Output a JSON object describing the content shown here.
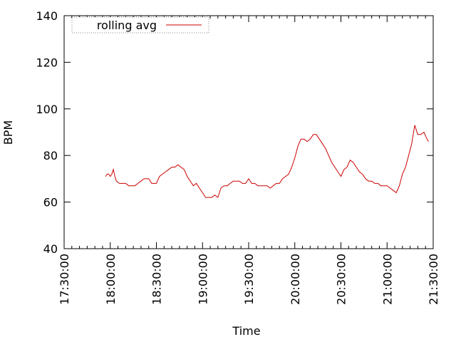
{
  "chart_data": {
    "type": "line",
    "title": "",
    "xlabel": "Time",
    "ylabel": "BPM",
    "xlim": [
      "17:30:00",
      "21:30:00"
    ],
    "ylim": [
      40,
      140
    ],
    "x_ticks": [
      "17:30:00",
      "18:00:00",
      "18:30:00",
      "19:00:00",
      "19:30:00",
      "20:00:00",
      "20:30:00",
      "21:00:00",
      "21:30:00"
    ],
    "y_ticks": [
      40,
      60,
      80,
      100,
      120,
      140
    ],
    "grid": false,
    "legend_position": "top-left",
    "series": [
      {
        "name": "rolling avg",
        "color": "#cc0000",
        "points": [
          [
            "17:57:00",
            71
          ],
          [
            "17:58:00",
            72
          ],
          [
            "17:59:00",
            72
          ],
          [
            "18:00:00",
            71
          ],
          [
            "18:01:00",
            72
          ],
          [
            "18:02:00",
            74
          ],
          [
            "18:03:00",
            71
          ],
          [
            "18:04:00",
            69
          ],
          [
            "18:06:00",
            68
          ],
          [
            "18:08:00",
            68
          ],
          [
            "18:10:00",
            68
          ],
          [
            "18:12:00",
            67
          ],
          [
            "18:14:00",
            67
          ],
          [
            "18:16:00",
            67
          ],
          [
            "18:18:00",
            68
          ],
          [
            "18:20:00",
            69
          ],
          [
            "18:22:00",
            70
          ],
          [
            "18:25:00",
            70
          ],
          [
            "18:27:00",
            68
          ],
          [
            "18:30:00",
            68
          ],
          [
            "18:32:00",
            71
          ],
          [
            "18:34:00",
            72
          ],
          [
            "18:36:00",
            73
          ],
          [
            "18:38:00",
            74
          ],
          [
            "18:40:00",
            75
          ],
          [
            "18:42:00",
            75
          ],
          [
            "18:44:00",
            76
          ],
          [
            "18:46:00",
            75
          ],
          [
            "18:48:00",
            74
          ],
          [
            "18:50:00",
            71
          ],
          [
            "18:52:00",
            69
          ],
          [
            "18:54:00",
            67
          ],
          [
            "18:56:00",
            68
          ],
          [
            "18:58:00",
            66
          ],
          [
            "19:00:00",
            64
          ],
          [
            "19:02:00",
            62
          ],
          [
            "19:04:00",
            62
          ],
          [
            "19:06:00",
            62
          ],
          [
            "19:08:00",
            63
          ],
          [
            "19:10:00",
            62
          ],
          [
            "19:12:00",
            66
          ],
          [
            "19:14:00",
            67
          ],
          [
            "19:16:00",
            67
          ],
          [
            "19:18:00",
            68
          ],
          [
            "19:20:00",
            69
          ],
          [
            "19:22:00",
            69
          ],
          [
            "19:24:00",
            69
          ],
          [
            "19:26:00",
            68
          ],
          [
            "19:28:00",
            68
          ],
          [
            "19:30:00",
            70
          ],
          [
            "19:32:00",
            68
          ],
          [
            "19:34:00",
            68
          ],
          [
            "19:36:00",
            67
          ],
          [
            "19:38:00",
            67
          ],
          [
            "19:40:00",
            67
          ],
          [
            "19:42:00",
            67
          ],
          [
            "19:44:00",
            66
          ],
          [
            "19:46:00",
            67
          ],
          [
            "19:48:00",
            68
          ],
          [
            "19:50:00",
            68
          ],
          [
            "19:52:00",
            70
          ],
          [
            "19:54:00",
            71
          ],
          [
            "19:56:00",
            72
          ],
          [
            "19:58:00",
            75
          ],
          [
            "20:00:00",
            79
          ],
          [
            "20:02:00",
            84
          ],
          [
            "20:04:00",
            87
          ],
          [
            "20:06:00",
            87
          ],
          [
            "20:08:00",
            86
          ],
          [
            "20:10:00",
            87
          ],
          [
            "20:12:00",
            89
          ],
          [
            "20:14:00",
            89
          ],
          [
            "20:16:00",
            87
          ],
          [
            "20:18:00",
            85
          ],
          [
            "20:20:00",
            83
          ],
          [
            "20:22:00",
            80
          ],
          [
            "20:24:00",
            77
          ],
          [
            "20:26:00",
            75
          ],
          [
            "20:28:00",
            73
          ],
          [
            "20:30:00",
            71
          ],
          [
            "20:32:00",
            74
          ],
          [
            "20:34:00",
            75
          ],
          [
            "20:36:00",
            78
          ],
          [
            "20:38:00",
            77
          ],
          [
            "20:40:00",
            75
          ],
          [
            "20:42:00",
            73
          ],
          [
            "20:44:00",
            72
          ],
          [
            "20:46:00",
            70
          ],
          [
            "20:48:00",
            69
          ],
          [
            "20:50:00",
            69
          ],
          [
            "20:52:00",
            68
          ],
          [
            "20:54:00",
            68
          ],
          [
            "20:56:00",
            67
          ],
          [
            "20:58:00",
            67
          ],
          [
            "21:00:00",
            67
          ],
          [
            "21:02:00",
            66
          ],
          [
            "21:04:00",
            65
          ],
          [
            "21:06:00",
            64
          ],
          [
            "21:08:00",
            67
          ],
          [
            "21:10:00",
            72
          ],
          [
            "21:12:00",
            75
          ],
          [
            "21:14:00",
            80
          ],
          [
            "21:16:00",
            85
          ],
          [
            "21:18:00",
            93
          ],
          [
            "21:20:00",
            89
          ],
          [
            "21:22:00",
            89
          ],
          [
            "21:24:00",
            90
          ],
          [
            "21:26:00",
            87
          ],
          [
            "21:27:00",
            86
          ]
        ]
      }
    ]
  }
}
